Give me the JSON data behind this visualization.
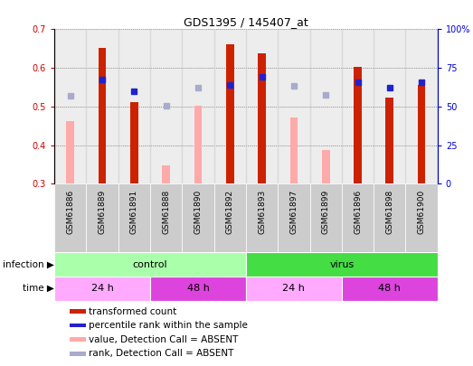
{
  "title": "GDS1395 / 145407_at",
  "samples": [
    "GSM61886",
    "GSM61889",
    "GSM61891",
    "GSM61888",
    "GSM61890",
    "GSM61892",
    "GSM61893",
    "GSM61897",
    "GSM61899",
    "GSM61896",
    "GSM61898",
    "GSM61900"
  ],
  "transformed_count": [
    null,
    0.652,
    0.512,
    null,
    null,
    0.66,
    0.638,
    null,
    null,
    0.602,
    0.523,
    0.555
  ],
  "percentile_rank": [
    null,
    0.57,
    0.54,
    null,
    null,
    0.555,
    0.578,
    null,
    null,
    0.562,
    0.548,
    0.562
  ],
  "value_absent": [
    0.462,
    null,
    null,
    0.348,
    0.502,
    null,
    null,
    0.472,
    0.388,
    null,
    null,
    null
  ],
  "rank_absent": [
    0.527,
    null,
    null,
    0.503,
    0.548,
    null,
    null,
    0.553,
    0.53,
    null,
    null,
    null
  ],
  "ylim_left": [
    0.3,
    0.7
  ],
  "ylim_right": [
    0,
    100
  ],
  "yticks_left": [
    0.3,
    0.4,
    0.5,
    0.6,
    0.7
  ],
  "yticks_right": [
    0,
    25,
    50,
    75,
    100
  ],
  "ytick_labels_right": [
    "0",
    "25",
    "50",
    "75",
    "100%"
  ],
  "bar_color_red": "#cc2200",
  "bar_color_pink": "#ffaaaa",
  "dot_color_blue": "#2222cc",
  "dot_color_lightblue": "#aaaacc",
  "infection_groups": [
    {
      "label": "control",
      "start": 0,
      "end": 6,
      "color": "#aaffaa"
    },
    {
      "label": "virus",
      "start": 6,
      "end": 12,
      "color": "#44dd44"
    }
  ],
  "time_groups": [
    {
      "label": "24 h",
      "start": 0,
      "end": 3,
      "color": "#ffaaff"
    },
    {
      "label": "48 h",
      "start": 3,
      "end": 6,
      "color": "#dd44dd"
    },
    {
      "label": "24 h",
      "start": 6,
      "end": 9,
      "color": "#ffaaff"
    },
    {
      "label": "48 h",
      "start": 9,
      "end": 12,
      "color": "#dd44dd"
    }
  ],
  "legend_items": [
    {
      "label": "transformed count",
      "color": "#cc2200"
    },
    {
      "label": "percentile rank within the sample",
      "color": "#2222cc"
    },
    {
      "label": "value, Detection Call = ABSENT",
      "color": "#ffaaaa"
    },
    {
      "label": "rank, Detection Call = ABSENT",
      "color": "#aaaacc"
    }
  ]
}
